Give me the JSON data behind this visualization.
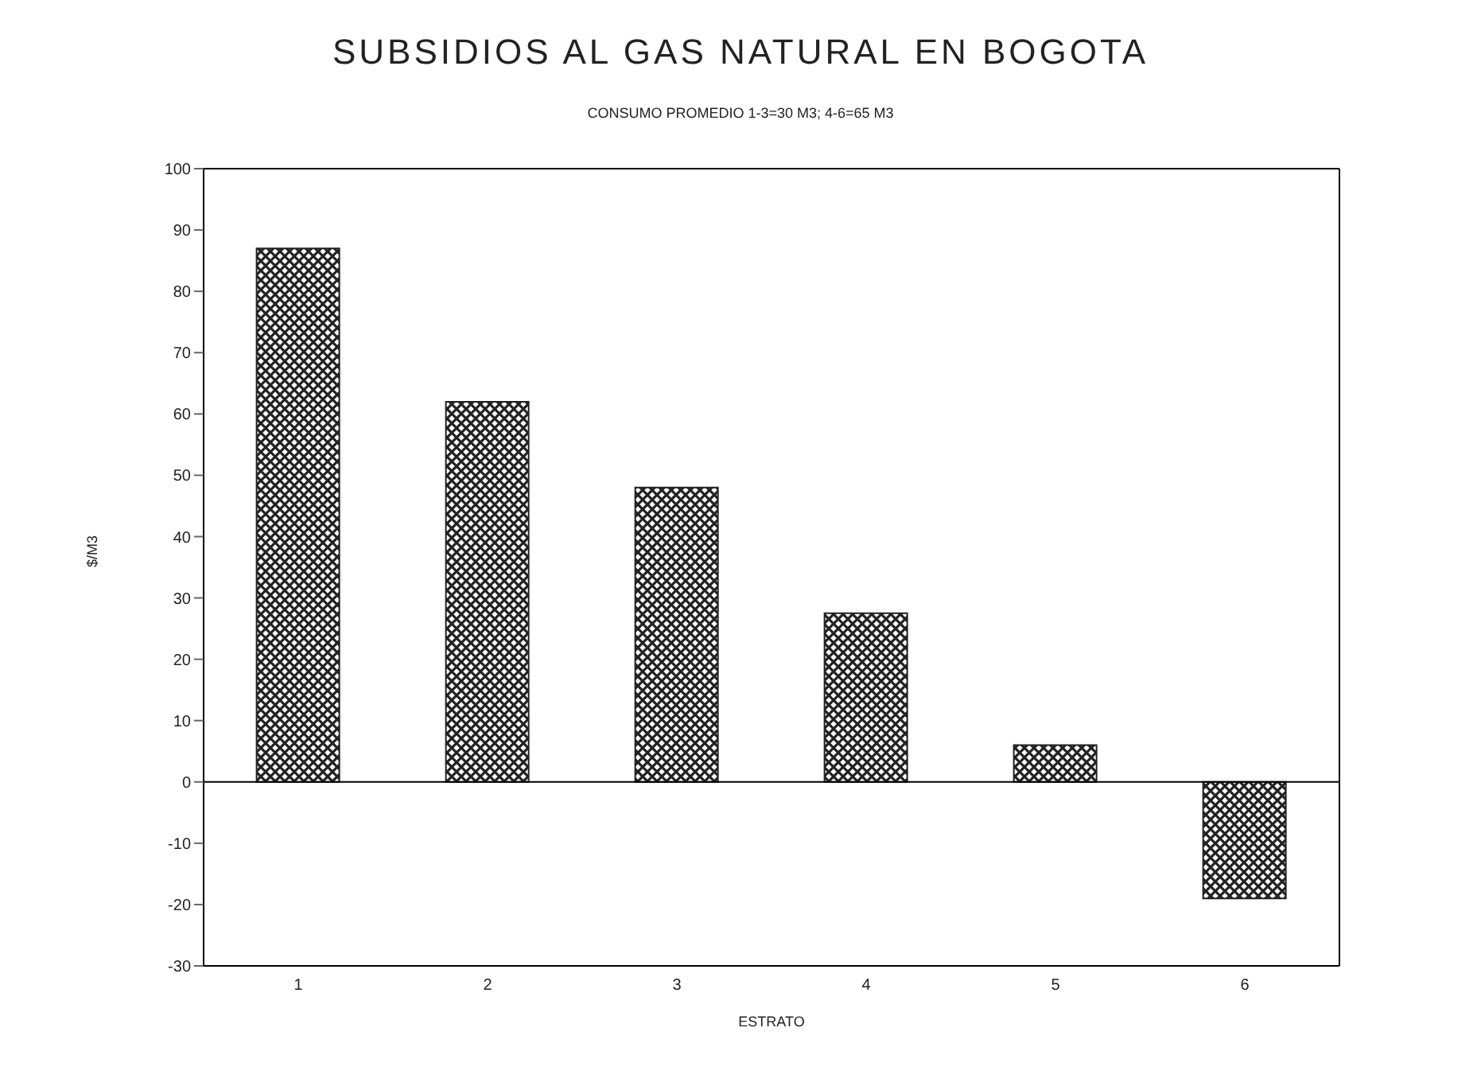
{
  "chart_data": {
    "type": "bar",
    "title": "SUBSIDIOS AL GAS NATURAL EN BOGOTA",
    "subtitle": "CONSUMO PROMEDIO 1-3=30 M3; 4-6=65 M3",
    "xlabel": "ESTRATO",
    "ylabel": "$/M3",
    "categories": [
      "1",
      "2",
      "3",
      "4",
      "5",
      "6"
    ],
    "values": [
      87,
      62,
      48,
      27.5,
      6,
      -19
    ],
    "color": "#222222",
    "ylim": [
      -30,
      100
    ],
    "yticks": [
      -30,
      -20,
      -10,
      0,
      10,
      20,
      30,
      40,
      50,
      60,
      70,
      80,
      90,
      100
    ],
    "ref_lines": [
      {
        "axis": "y",
        "value": 0,
        "color": "#000000"
      }
    ]
  }
}
